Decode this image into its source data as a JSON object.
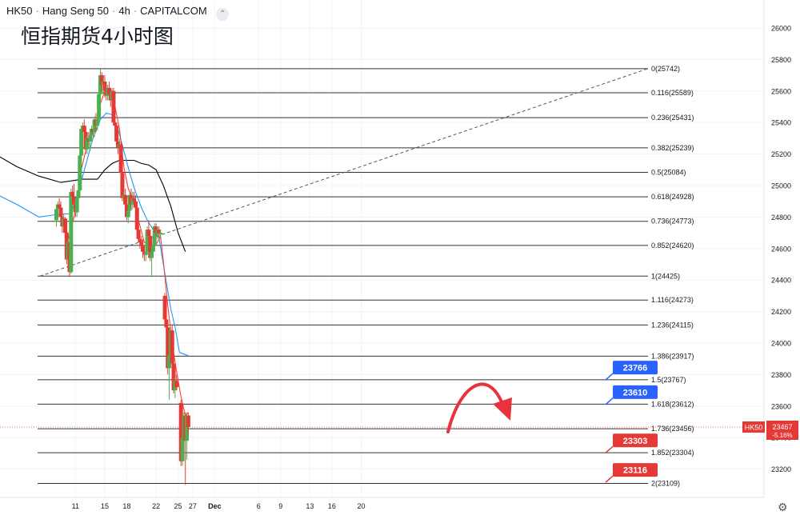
{
  "header": {
    "symbol": "HK50",
    "name": "Hang Seng 50",
    "timeframe": "4h",
    "source": "CAPITALCOM",
    "subtitle": "恒指期货4小时图"
  },
  "price_tag": {
    "symbol": "HK50",
    "price": "23467",
    "change": "-5.16%"
  },
  "colors": {
    "up": "#4caf50",
    "down": "#e53935",
    "ma_fast": "#f44336",
    "ma_mid": "#2196f3",
    "ma_slow": "#000000",
    "fib_line": "#333333",
    "label_blue": "#2962ff",
    "label_red": "#e53935",
    "arrow": "#e8323c"
  },
  "chart_data": {
    "type": "candlestick",
    "y_axis": {
      "min": 23030,
      "max": 26150,
      "ticks": [
        23200,
        23400,
        23600,
        23800,
        24000,
        24200,
        24400,
        24600,
        24800,
        25000,
        25200,
        25400,
        25600,
        25800,
        26000
      ]
    },
    "x_axis": {
      "ticks": [
        {
          "label": "11",
          "day": 11
        },
        {
          "label": "15",
          "day": 15
        },
        {
          "label": "18",
          "day": 18
        },
        {
          "label": "22",
          "day": 22
        },
        {
          "label": "25",
          "day": 25
        },
        {
          "label": "27",
          "day": 27
        },
        {
          "label": "Dec",
          "day": 30
        },
        {
          "label": "6",
          "day": 36
        },
        {
          "label": "9",
          "day": 39
        },
        {
          "label": "13",
          "day": 43
        },
        {
          "label": "16",
          "day": 46
        },
        {
          "label": "20",
          "day": 50
        }
      ]
    },
    "fib_levels": [
      {
        "label": "0(25742)",
        "value": 25742
      },
      {
        "label": "0.116(25589)",
        "value": 25589
      },
      {
        "label": "0.236(25431)",
        "value": 25431
      },
      {
        "label": "0.382(25239)",
        "value": 25239
      },
      {
        "label": "0.5(25084)",
        "value": 25084
      },
      {
        "label": "0.618(24928)",
        "value": 24928
      },
      {
        "label": "0.736(24773)",
        "value": 24773
      },
      {
        "label": "0.852(24620)",
        "value": 24620
      },
      {
        "label": "1(24425)",
        "value": 24425
      },
      {
        "label": "1.116(24273)",
        "value": 24273
      },
      {
        "label": "1.236(24115)",
        "value": 24115
      },
      {
        "label": "1.386(23917)",
        "value": 23917
      },
      {
        "label": "1.5(23767)",
        "value": 23767
      },
      {
        "label": "1.618(23612)",
        "value": 23612
      },
      {
        "label": "1.736(23456)",
        "value": 23456
      },
      {
        "label": "1.852(23304)",
        "value": 23304
      },
      {
        "label": "2(23109)",
        "value": 23109
      }
    ],
    "callouts": [
      {
        "text": "23766",
        "value": 23766,
        "color": "blue"
      },
      {
        "text": "23610",
        "value": 23610,
        "color": "blue"
      },
      {
        "text": "23303",
        "value": 23303,
        "color": "red"
      },
      {
        "text": "23116",
        "value": 23116,
        "color": "red"
      }
    ],
    "last_price": 23467,
    "candles": [
      [
        8.4,
        24780,
        24880,
        24740,
        24850
      ],
      [
        8.6,
        24850,
        24900,
        24800,
        24880
      ],
      [
        8.8,
        24880,
        24920,
        24840,
        24860
      ],
      [
        9.0,
        24860,
        24900,
        24780,
        24800
      ],
      [
        9.2,
        24800,
        24840,
        24700,
        24740
      ],
      [
        9.4,
        24740,
        24820,
        24700,
        24790
      ],
      [
        9.6,
        24790,
        24800,
        24680,
        24700
      ],
      [
        9.8,
        24700,
        24720,
        24500,
        24530
      ],
      [
        10.0,
        24530,
        24660,
        24500,
        24640
      ],
      [
        10.2,
        24640,
        24660,
        24420,
        24450
      ],
      [
        10.4,
        24450,
        24980,
        24440,
        24960
      ],
      [
        10.6,
        24960,
        25000,
        24880,
        24930
      ],
      [
        10.8,
        24930,
        25010,
        24860,
        24880
      ],
      [
        11.0,
        24880,
        24920,
        24800,
        24830
      ],
      [
        11.2,
        24830,
        24960,
        24800,
        24920
      ],
      [
        11.4,
        24920,
        25000,
        24880,
        24970
      ],
      [
        11.6,
        24970,
        25210,
        24950,
        25190
      ],
      [
        11.8,
        25190,
        25380,
        25150,
        25360
      ],
      [
        12.0,
        25360,
        25400,
        25300,
        25380
      ],
      [
        12.2,
        25380,
        25420,
        25320,
        25340
      ],
      [
        12.4,
        25340,
        25360,
        25200,
        25230
      ],
      [
        12.6,
        25230,
        25320,
        25200,
        25300
      ],
      [
        12.8,
        25300,
        25340,
        25260,
        25280
      ],
      [
        13.0,
        25280,
        25340,
        25220,
        25320
      ],
      [
        13.2,
        25320,
        25380,
        25280,
        25360
      ],
      [
        13.4,
        25360,
        25400,
        25300,
        25340
      ],
      [
        13.6,
        25340,
        25440,
        25310,
        25420
      ],
      [
        13.8,
        25420,
        25460,
        25340,
        25380
      ],
      [
        14.0,
        25380,
        25440,
        25350,
        25420
      ],
      [
        14.2,
        25420,
        25600,
        25400,
        25580
      ],
      [
        14.4,
        25580,
        25740,
        25560,
        25700
      ],
      [
        14.6,
        25700,
        25720,
        25600,
        25640
      ],
      [
        14.8,
        25640,
        25680,
        25580,
        25660
      ],
      [
        15.0,
        25660,
        25700,
        25560,
        25600
      ],
      [
        15.2,
        25600,
        25640,
        25540,
        25570
      ],
      [
        15.4,
        25570,
        25640,
        25540,
        25620
      ],
      [
        15.6,
        25620,
        25660,
        25560,
        25580
      ],
      [
        15.8,
        25580,
        25620,
        25500,
        25540
      ],
      [
        16.0,
        25540,
        25620,
        25500,
        25600
      ],
      [
        16.2,
        25600,
        25620,
        25380,
        25400
      ],
      [
        16.4,
        25400,
        25440,
        25340,
        25380
      ],
      [
        16.6,
        25380,
        25400,
        25260,
        25280
      ],
      [
        16.8,
        25280,
        25300,
        25200,
        25240
      ],
      [
        17.0,
        25240,
        25300,
        25180,
        25260
      ],
      [
        17.2,
        25260,
        25280,
        25060,
        25080
      ],
      [
        17.4,
        25080,
        25100,
        24900,
        24920
      ],
      [
        17.6,
        24920,
        24960,
        24880,
        24940
      ],
      [
        17.8,
        24940,
        24980,
        24860,
        24880
      ],
      [
        18.0,
        24880,
        24920,
        24780,
        24800
      ],
      [
        18.2,
        24800,
        24860,
        24760,
        24840
      ],
      [
        18.4,
        24840,
        24960,
        24820,
        24940
      ],
      [
        18.6,
        24940,
        24980,
        24860,
        24880
      ],
      [
        18.8,
        24880,
        24960,
        24850,
        24920
      ],
      [
        19.0,
        24920,
        24960,
        24860,
        24900
      ],
      [
        19.2,
        24900,
        24940,
        24820,
        24860
      ],
      [
        19.4,
        24860,
        24880,
        24700,
        24720
      ],
      [
        19.6,
        24720,
        24760,
        24640,
        24660
      ],
      [
        19.8,
        24660,
        24700,
        24600,
        24640
      ],
      [
        20.0,
        24640,
        24680,
        24580,
        24620
      ],
      [
        20.2,
        24620,
        24660,
        24540,
        24580
      ],
      [
        20.4,
        24580,
        24600,
        24520,
        24560
      ],
      [
        20.6,
        24560,
        24600,
        24520,
        24580
      ],
      [
        20.8,
        24580,
        24740,
        24560,
        24720
      ],
      [
        21.0,
        24720,
        24780,
        24660,
        24680
      ],
      [
        21.2,
        24680,
        24700,
        24520,
        24540
      ],
      [
        21.4,
        24540,
        24600,
        24420,
        24580
      ],
      [
        21.6,
        24580,
        24640,
        24560,
        24620
      ],
      [
        21.8,
        24620,
        24760,
        24600,
        24740
      ],
      [
        22.0,
        24740,
        24760,
        24680,
        24700
      ],
      [
        22.2,
        24700,
        24740,
        24660,
        24720
      ],
      [
        22.4,
        24720,
        24740,
        24670,
        24690
      ],
      [
        22.6,
        24690,
        24720,
        24660,
        24700
      ],
      [
        23.2,
        24300,
        24320,
        24100,
        24150
      ],
      [
        23.4,
        24150,
        24180,
        24060,
        24100
      ],
      [
        23.6,
        24100,
        24140,
        23800,
        23840
      ],
      [
        23.8,
        23840,
        23960,
        23640,
        23920
      ],
      [
        24.0,
        23920,
        24100,
        23880,
        24080
      ],
      [
        24.2,
        24080,
        24120,
        23840,
        23870
      ],
      [
        24.4,
        23870,
        23900,
        23680,
        23700
      ],
      [
        24.6,
        23700,
        23780,
        23650,
        23760
      ],
      [
        24.8,
        23760,
        23800,
        23700,
        23720
      ],
      [
        25.4,
        23620,
        23640,
        23220,
        23250
      ],
      [
        25.6,
        23250,
        23420,
        23220,
        23400
      ],
      [
        25.8,
        23400,
        23560,
        23380,
        23540
      ],
      [
        26.0,
        23540,
        23560,
        23100,
        23380
      ],
      [
        26.2,
        23380,
        23560,
        23260,
        23540
      ],
      [
        26.4,
        23540,
        23560,
        23420,
        23467
      ]
    ],
    "ma_fast": [
      [
        8.4,
        24800
      ],
      [
        9.0,
        24810
      ],
      [
        9.6,
        24740
      ],
      [
        10.2,
        24660
      ],
      [
        10.6,
        24760
      ],
      [
        11.2,
        24880
      ],
      [
        11.8,
        25100
      ],
      [
        12.6,
        25260
      ],
      [
        13.2,
        25320
      ],
      [
        13.8,
        25380
      ],
      [
        14.4,
        25520
      ],
      [
        15.0,
        25600
      ],
      [
        15.6,
        25610
      ],
      [
        16.0,
        25600
      ],
      [
        16.4,
        25500
      ],
      [
        17.0,
        25360
      ],
      [
        17.6,
        25120
      ],
      [
        18.2,
        24980
      ],
      [
        19.0,
        24900
      ],
      [
        19.6,
        24780
      ],
      [
        20.4,
        24640
      ],
      [
        21.0,
        24620
      ],
      [
        21.6,
        24600
      ],
      [
        22.2,
        24640
      ],
      [
        22.6,
        24680
      ],
      [
        23.0,
        24520
      ],
      [
        23.6,
        24240
      ],
      [
        24.2,
        24000
      ],
      [
        24.8,
        23820
      ],
      [
        25.4,
        23660
      ],
      [
        26.0,
        23540
      ],
      [
        26.4,
        23560
      ]
    ],
    "ma_mid": [
      [
        0.0,
        24950
      ],
      [
        3.0,
        24880
      ],
      [
        6.0,
        24800
      ],
      [
        9.0,
        24820
      ],
      [
        10.4,
        24820
      ],
      [
        11.4,
        24960
      ],
      [
        12.4,
        25130
      ],
      [
        13.4,
        25300
      ],
      [
        14.4,
        25420
      ],
      [
        15.2,
        25460
      ],
      [
        16.0,
        25450
      ],
      [
        16.8,
        25360
      ],
      [
        17.6,
        25220
      ],
      [
        18.4,
        25080
      ],
      [
        19.2,
        24960
      ],
      [
        20.0,
        24860
      ],
      [
        20.8,
        24780
      ],
      [
        21.6,
        24720
      ],
      [
        22.4,
        24670
      ],
      [
        23.2,
        24440
      ],
      [
        24.0,
        24220
      ],
      [
        24.6,
        24100
      ],
      [
        25.2,
        23940
      ],
      [
        26.4,
        23920
      ]
    ],
    "ma_slow": [
      [
        0.0,
        25200
      ],
      [
        3.0,
        25120
      ],
      [
        6.0,
        25060
      ],
      [
        9.0,
        25020
      ],
      [
        12.0,
        25040
      ],
      [
        14.0,
        25040
      ],
      [
        15.0,
        25100
      ],
      [
        16.0,
        25140
      ],
      [
        17.0,
        25160
      ],
      [
        18.0,
        25160
      ],
      [
        19.0,
        25160
      ],
      [
        20.0,
        25140
      ],
      [
        21.0,
        25130
      ],
      [
        22.0,
        25100
      ],
      [
        23.0,
        25000
      ],
      [
        24.0,
        24870
      ],
      [
        25.0,
        24700
      ],
      [
        26.0,
        24580
      ]
    ]
  }
}
